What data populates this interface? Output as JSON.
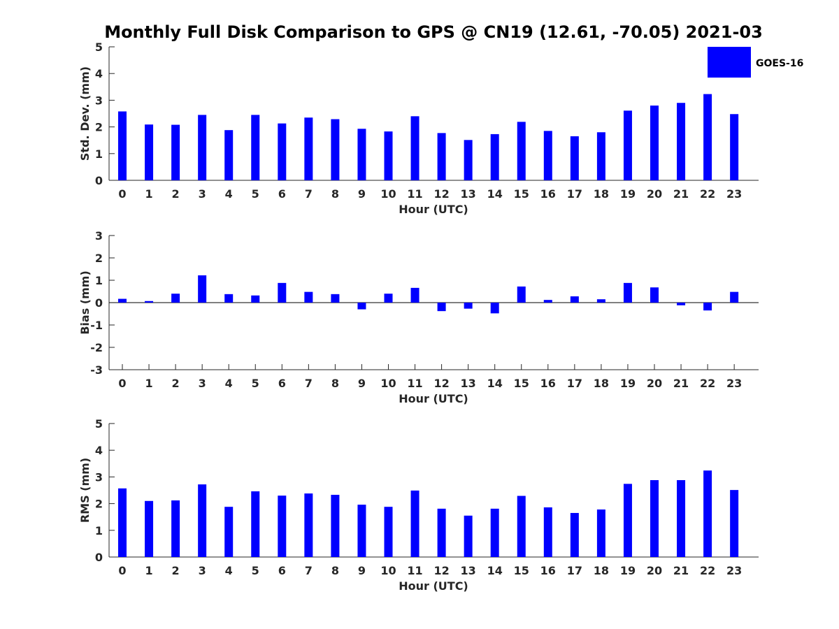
{
  "title": "Monthly Full Disk Comparison to GPS @ CN19 (12.61, -70.05) 2021-03",
  "legend": {
    "label": "GOES-16",
    "position": "top-right",
    "color": "#0000ff"
  },
  "chart_data": [
    {
      "type": "bar",
      "title": "Monthly Full Disk Comparison to GPS @ CN19 (12.61, -70.05) 2021-03",
      "xlabel": "Hour (UTC)",
      "ylabel": "Std. Dev. (mm)",
      "ylim": [
        0,
        5
      ],
      "yticks": [
        0,
        1,
        2,
        3,
        4,
        5
      ],
      "categories": [
        "0",
        "1",
        "2",
        "3",
        "4",
        "5",
        "6",
        "7",
        "8",
        "9",
        "10",
        "11",
        "12",
        "13",
        "14",
        "15",
        "16",
        "17",
        "18",
        "19",
        "20",
        "21",
        "22",
        "23"
      ],
      "series": [
        {
          "name": "GOES-16",
          "color": "#0000ff",
          "values": [
            2.58,
            2.09,
            2.08,
            2.45,
            1.88,
            2.45,
            2.13,
            2.35,
            2.29,
            1.93,
            1.83,
            2.4,
            1.77,
            1.51,
            1.73,
            2.19,
            1.85,
            1.65,
            1.8,
            2.61,
            2.8,
            2.9,
            3.23,
            2.48
          ]
        }
      ],
      "grid": false
    },
    {
      "type": "bar",
      "xlabel": "Hour (UTC)",
      "ylabel": "Bias (mm)",
      "ylim": [
        -3,
        3
      ],
      "yticks": [
        -3,
        -2,
        -1,
        0,
        1,
        2,
        3
      ],
      "categories": [
        "0",
        "1",
        "2",
        "3",
        "4",
        "5",
        "6",
        "7",
        "8",
        "9",
        "10",
        "11",
        "12",
        "13",
        "14",
        "15",
        "16",
        "17",
        "18",
        "19",
        "20",
        "21",
        "22",
        "23"
      ],
      "series": [
        {
          "name": "GOES-16",
          "color": "#0000ff",
          "values": [
            0.17,
            0.07,
            0.4,
            1.22,
            0.38,
            0.32,
            0.88,
            0.48,
            0.38,
            -0.3,
            0.4,
            0.66,
            -0.38,
            -0.27,
            -0.48,
            0.72,
            0.12,
            0.28,
            0.15,
            0.88,
            0.68,
            -0.12,
            -0.35,
            0.48
          ]
        }
      ],
      "grid": false
    },
    {
      "type": "bar",
      "xlabel": "Hour (UTC)",
      "ylabel": "RMS (mm)",
      "ylim": [
        0,
        5
      ],
      "yticks": [
        0,
        1,
        2,
        3,
        4,
        5
      ],
      "categories": [
        "0",
        "1",
        "2",
        "3",
        "4",
        "5",
        "6",
        "7",
        "8",
        "9",
        "10",
        "11",
        "12",
        "13",
        "14",
        "15",
        "16",
        "17",
        "18",
        "19",
        "20",
        "21",
        "22",
        "23"
      ],
      "series": [
        {
          "name": "GOES-16",
          "color": "#0000ff",
          "values": [
            2.57,
            2.1,
            2.12,
            2.72,
            1.88,
            2.46,
            2.3,
            2.38,
            2.33,
            1.96,
            1.88,
            2.49,
            1.81,
            1.55,
            1.81,
            2.29,
            1.86,
            1.65,
            1.78,
            2.74,
            2.88,
            2.88,
            3.24,
            2.51
          ]
        }
      ],
      "grid": false
    }
  ]
}
